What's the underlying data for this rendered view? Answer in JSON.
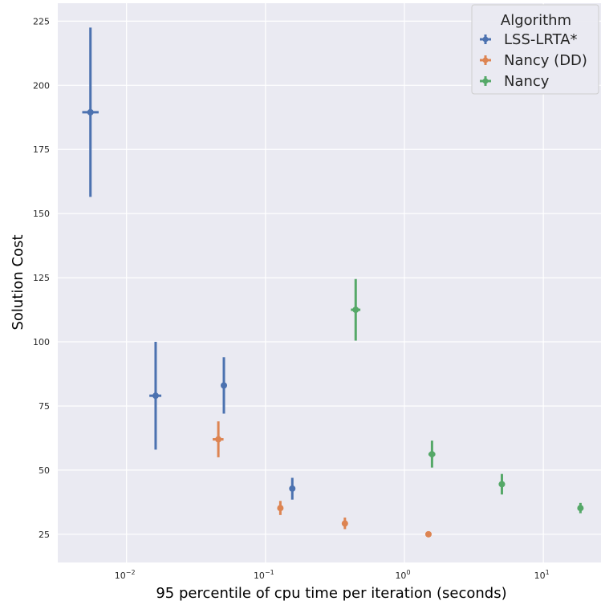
{
  "chart_data": {
    "type": "scatter",
    "title": "",
    "xlabel": "95 percentile of cpu time per iteration (seconds)",
    "ylabel": "Solution Cost",
    "x_scale": "log",
    "xlim": [
      0.0032,
      26
    ],
    "ylim": [
      14,
      232
    ],
    "x_ticks": [
      {
        "value": 0.01,
        "base": "10",
        "exp": "−2"
      },
      {
        "value": 0.1,
        "base": "10",
        "exp": "−1"
      },
      {
        "value": 1,
        "base": "10",
        "exp": "0"
      },
      {
        "value": 10,
        "base": "10",
        "exp": "1"
      }
    ],
    "y_ticks": [
      25,
      50,
      75,
      100,
      125,
      150,
      175,
      200,
      225
    ],
    "grid": true,
    "legend": {
      "title": "Algorithm",
      "placement": "top-right"
    },
    "series": [
      {
        "name": "LSS-LRTA*",
        "color": "#4c72b0",
        "points": [
          {
            "x": 0.0055,
            "y": 189.5,
            "y_lo": 156.5,
            "y_hi": 222.5,
            "x_lo": 0.0048,
            "x_hi": 0.0063
          },
          {
            "x": 0.0162,
            "y": 79,
            "y_lo": 58,
            "y_hi": 100,
            "x_lo": 0.0146,
            "x_hi": 0.0178
          },
          {
            "x": 0.0502,
            "y": 83,
            "y_lo": 72,
            "y_hi": 94,
            "x_lo": 0.0497,
            "x_hi": 0.0507
          },
          {
            "x": 0.156,
            "y": 42.8,
            "y_lo": 38.5,
            "y_hi": 47,
            "x_lo": 0.155,
            "x_hi": 0.157
          }
        ]
      },
      {
        "name": "Nancy (DD)",
        "color": "#dd8452",
        "points": [
          {
            "x": 0.0458,
            "y": 62,
            "y_lo": 55,
            "y_hi": 69,
            "x_lo": 0.0417,
            "x_hi": 0.0499
          },
          {
            "x": 0.128,
            "y": 35.2,
            "y_lo": 32.5,
            "y_hi": 38,
            "x_lo": 0.123,
            "x_hi": 0.133
          },
          {
            "x": 0.373,
            "y": 29.2,
            "y_lo": 27,
            "y_hi": 31.5,
            "x_lo": 0.368,
            "x_hi": 0.378
          },
          {
            "x": 1.49,
            "y": 25,
            "y_lo": 24.5,
            "y_hi": 25.5,
            "x_lo": 1.48,
            "x_hi": 1.5
          }
        ]
      },
      {
        "name": "Nancy",
        "color": "#55a868",
        "points": [
          {
            "x": 0.446,
            "y": 112.5,
            "y_lo": 100.5,
            "y_hi": 124.5,
            "x_lo": 0.412,
            "x_hi": 0.482
          },
          {
            "x": 1.58,
            "y": 56.2,
            "y_lo": 51,
            "y_hi": 61.5,
            "x_lo": 1.49,
            "x_hi": 1.67
          },
          {
            "x": 5.03,
            "y": 44.5,
            "y_lo": 40.5,
            "y_hi": 48.5,
            "x_lo": 4.78,
            "x_hi": 5.28
          },
          {
            "x": 18.5,
            "y": 35.2,
            "y_lo": 33.2,
            "y_hi": 37.2,
            "x_lo": 17.7,
            "x_hi": 19.4
          }
        ]
      }
    ]
  }
}
